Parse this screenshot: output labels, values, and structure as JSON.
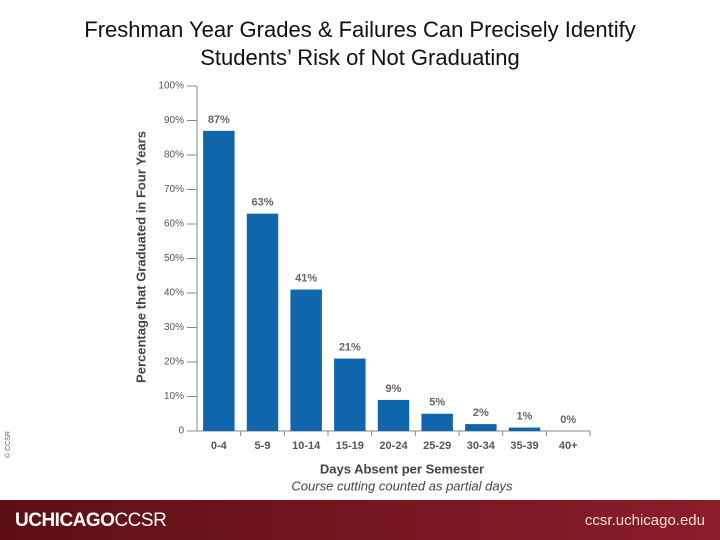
{
  "chart_data": {
    "type": "bar",
    "title": "Freshman Year Grades & Failures Can Precisely Identify Students’ Risk of Not Graduating",
    "y_label": "Percentage that Graduated in Four Years",
    "x_label": "Days Absent per Semester",
    "annotation": "Course cutting counted as partial days",
    "categories": [
      "0-4",
      "5-9",
      "10-14",
      "15-19",
      "20-24",
      "25-29",
      "30-34",
      "35-39",
      "40+"
    ],
    "values": [
      87,
      63,
      41,
      21,
      9,
      5,
      2,
      1,
      0
    ],
    "value_labels": [
      "87%",
      "63%",
      "41%",
      "21%",
      "9%",
      "5%",
      "2%",
      "1%",
      "0%"
    ],
    "color": "#0f66ad",
    "ylim": [
      0,
      100
    ],
    "yticks": [
      0,
      {
        "value": 10,
        "label": "10%"
      },
      {
        "value": 20,
        "label": "20%"
      },
      {
        "value": 30,
        "label": "30%"
      },
      {
        "value": 40,
        "label": "40%"
      },
      {
        "value": 50,
        "label": "50%"
      },
      {
        "value": 60,
        "label": "60%"
      },
      {
        "value": 70,
        "label": "70%"
      },
      {
        "value": 80,
        "label": "80%"
      },
      {
        "value": 90,
        "label": "90%"
      },
      {
        "value": 100,
        "label": "100%"
      }
    ],
    "grid": false
  },
  "copyright": "© CCSR",
  "footer": {
    "logo_left": "UCHICAGO",
    "logo_right": "CCSR",
    "url": "ccsr.uchicago.edu"
  }
}
